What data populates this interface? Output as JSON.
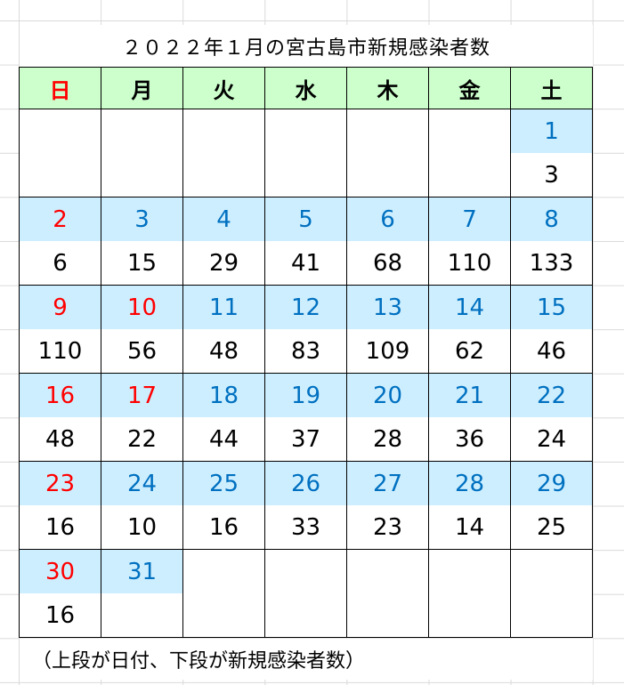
{
  "title": "２０２２年１月の宮古島市新規感染者数",
  "weekdays": [
    "日",
    "月",
    "火",
    "水",
    "木",
    "金",
    "土"
  ],
  "colors": {
    "header_bg": "#ccffcc",
    "date_bg": "#cceeff",
    "date_text": "#0070c0",
    "holiday_text": "#ff0000"
  },
  "weeks": [
    [
      null,
      null,
      null,
      null,
      null,
      null,
      {
        "date": "1",
        "count": "3"
      }
    ],
    [
      {
        "date": "2",
        "count": "6",
        "red": true
      },
      {
        "date": "3",
        "count": "15"
      },
      {
        "date": "4",
        "count": "29"
      },
      {
        "date": "5",
        "count": "41"
      },
      {
        "date": "6",
        "count": "68"
      },
      {
        "date": "7",
        "count": "110"
      },
      {
        "date": "8",
        "count": "133"
      }
    ],
    [
      {
        "date": "9",
        "count": "110",
        "red": true
      },
      {
        "date": "10",
        "count": "56",
        "red": true
      },
      {
        "date": "11",
        "count": "48"
      },
      {
        "date": "12",
        "count": "83"
      },
      {
        "date": "13",
        "count": "109"
      },
      {
        "date": "14",
        "count": "62"
      },
      {
        "date": "15",
        "count": "46"
      }
    ],
    [
      {
        "date": "16",
        "count": "48",
        "red": true
      },
      {
        "date": "17",
        "count": "22",
        "red": true
      },
      {
        "date": "18",
        "count": "44"
      },
      {
        "date": "19",
        "count": "37"
      },
      {
        "date": "20",
        "count": "28"
      },
      {
        "date": "21",
        "count": "36"
      },
      {
        "date": "22",
        "count": "24"
      }
    ],
    [
      {
        "date": "23",
        "count": "16",
        "red": true
      },
      {
        "date": "24",
        "count": "10"
      },
      {
        "date": "25",
        "count": "16"
      },
      {
        "date": "26",
        "count": "33"
      },
      {
        "date": "27",
        "count": "23"
      },
      {
        "date": "28",
        "count": "14"
      },
      {
        "date": "29",
        "count": "25"
      }
    ],
    [
      {
        "date": "30",
        "count": "16",
        "red": true
      },
      {
        "date": "31",
        "count": ""
      },
      null,
      null,
      null,
      null,
      null
    ]
  ],
  "caption": "（上段が日付、下段が新規感染者数）"
}
